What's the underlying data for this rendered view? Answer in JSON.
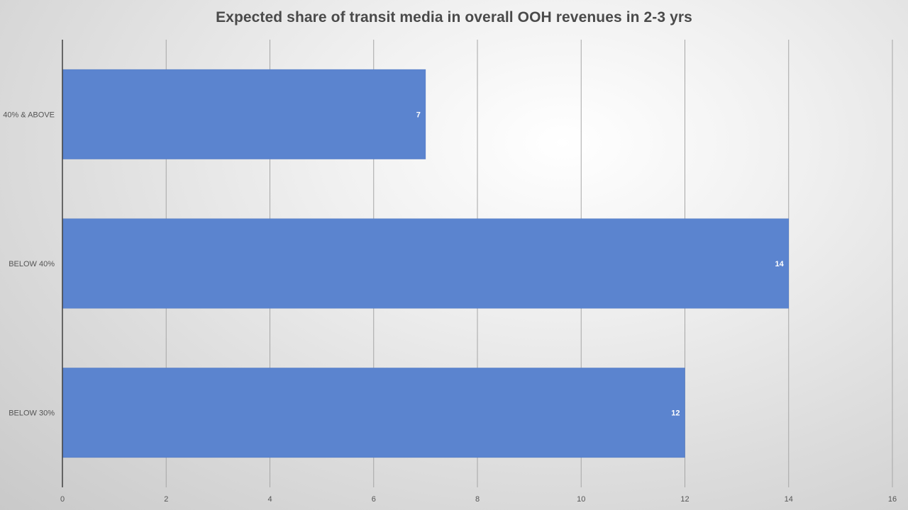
{
  "chart_data": {
    "type": "bar",
    "orientation": "horizontal",
    "title": "Expected share of transit media in overall OOH revenues in 2-3 yrs",
    "categories": [
      "40% & ABOVE",
      "BELOW 40%",
      "BELOW 30%"
    ],
    "values": [
      7,
      14,
      12
    ],
    "xlim": [
      0,
      16
    ],
    "x_ticks": [
      0,
      2,
      4,
      6,
      8,
      10,
      12,
      14,
      16
    ],
    "xlabel": "",
    "ylabel": "",
    "grid": true,
    "legend": "none",
    "data_labels": true,
    "bar_color": "#5b84cf",
    "gridline_color": "#a6a6a6",
    "axis_color": "#404040"
  }
}
